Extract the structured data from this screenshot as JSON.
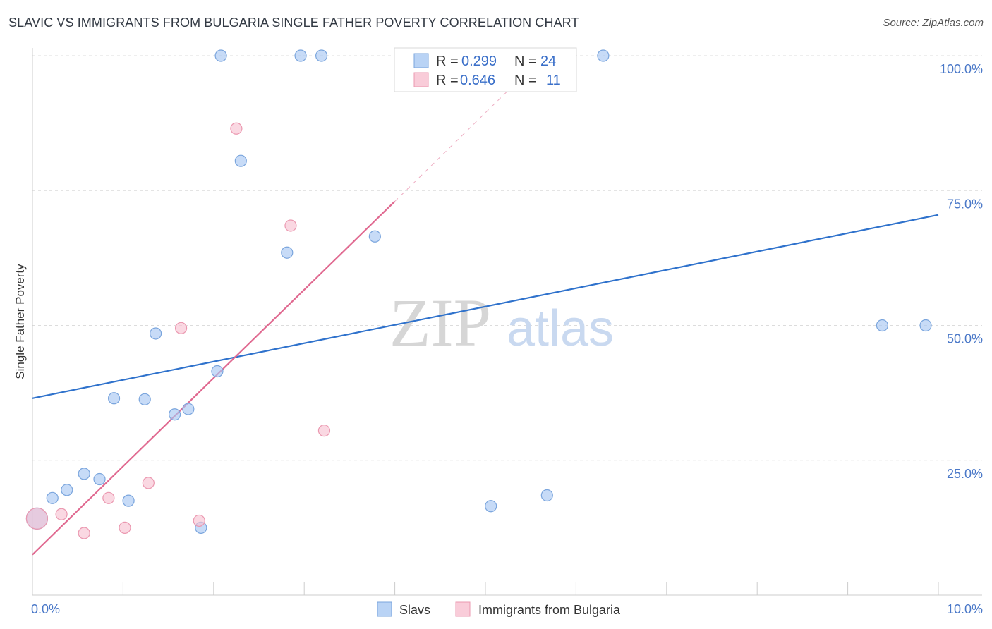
{
  "header": {
    "title": "SLAVIC VS IMMIGRANTS FROM BULGARIA SINGLE FATHER POVERTY CORRELATION CHART",
    "source": "Source: ZipAtlas.com"
  },
  "watermark": {
    "zip": "ZIP",
    "atlas": "atlas"
  },
  "chart_data": {
    "type": "scatter",
    "title": "SLAVIC VS IMMIGRANTS FROM BULGARIA SINGLE FATHER POVERTY CORRELATION CHART",
    "ylabel": "Single Father Poverty",
    "xlabel": "",
    "xlim": [
      0,
      10
    ],
    "ylim": [
      0,
      100
    ],
    "x_tick_labels": [
      "0.0%",
      "10.0%"
    ],
    "y_ticks": [
      25,
      50,
      75,
      100
    ],
    "y_tick_labels": [
      "25.0%",
      "50.0%",
      "75.0%",
      "100.0%"
    ],
    "legend": {
      "r_label": "R =",
      "n_label": "N =",
      "entries": [
        {
          "name": "Slavs",
          "r": "0.299",
          "n": "24"
        },
        {
          "name": "Immigrants from Bulgaria",
          "r": "0.646",
          "n": "11"
        }
      ]
    },
    "series": [
      {
        "name": "Slavs",
        "color": "#a9c8f2",
        "stroke": "#7aa5dd",
        "line_color": "#2f72cc",
        "trend": [
          [
            0,
            36.5
          ],
          [
            10,
            70.5
          ]
        ],
        "points": [
          [
            0.05,
            14.2
          ],
          [
            0.22,
            18.0
          ],
          [
            0.38,
            19.5
          ],
          [
            0.57,
            22.5
          ],
          [
            0.74,
            21.5
          ],
          [
            0.9,
            36.5
          ],
          [
            1.06,
            17.5
          ],
          [
            1.24,
            36.3
          ],
          [
            1.36,
            48.5
          ],
          [
            1.57,
            33.5
          ],
          [
            1.72,
            34.5
          ],
          [
            1.86,
            12.5
          ],
          [
            2.04,
            41.5
          ],
          [
            2.08,
            100
          ],
          [
            2.3,
            80.5
          ],
          [
            2.81,
            63.5
          ],
          [
            2.96,
            100
          ],
          [
            3.19,
            100
          ],
          [
            3.78,
            66.5
          ],
          [
            5.06,
            16.5
          ],
          [
            5.68,
            18.5
          ],
          [
            6.3,
            100
          ],
          [
            9.38,
            50
          ],
          [
            9.86,
            50
          ]
        ]
      },
      {
        "name": "Immigrants from Bulgaria",
        "color": "#f7c3d2",
        "stroke": "#eb98b0",
        "line_color": "#e06990",
        "trend": [
          [
            0,
            7.5
          ],
          [
            4,
            73
          ]
        ],
        "trend_dashed": [
          [
            4,
            73
          ],
          [
            5.4,
            96
          ]
        ],
        "points": [
          [
            0.05,
            14.2
          ],
          [
            0.32,
            15.0
          ],
          [
            0.57,
            11.5
          ],
          [
            0.84,
            18.0
          ],
          [
            1.02,
            12.5
          ],
          [
            1.28,
            20.8
          ],
          [
            1.64,
            49.5
          ],
          [
            1.84,
            13.8
          ],
          [
            2.25,
            86.5
          ],
          [
            2.85,
            68.5
          ],
          [
            3.22,
            30.5
          ]
        ]
      }
    ]
  }
}
